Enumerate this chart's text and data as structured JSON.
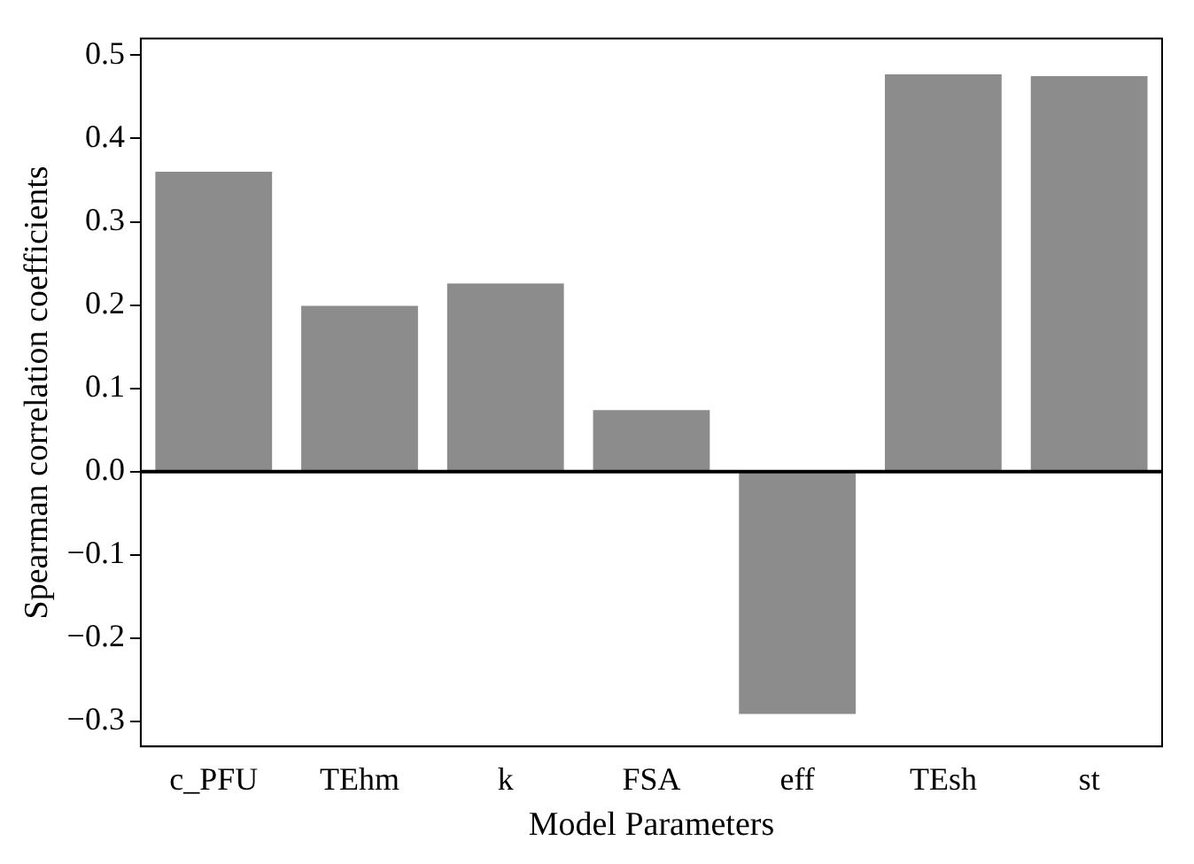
{
  "chart_data": {
    "type": "bar",
    "xlabel": "Model Parameters",
    "ylabel": "Spearman correlation coefficients",
    "categories": [
      "c_PFU",
      "TEhm",
      "k",
      "FSA",
      "eff",
      "TEsh",
      "st"
    ],
    "values": [
      0.36,
      0.199,
      0.226,
      0.074,
      -0.291,
      0.477,
      0.475
    ],
    "color": "#8c8c8c",
    "ylim": [
      -0.33,
      0.52
    ],
    "yticks": [
      -0.3,
      -0.2,
      -0.1,
      {
        "value": 0,
        "label": "0.0"
      },
      0.1,
      0.2,
      0.3,
      0.4,
      0.5
    ],
    "ref_lines": [
      {
        "axis": "y",
        "value": 0,
        "color": "#000000"
      }
    ],
    "grid": false,
    "legend": false
  }
}
